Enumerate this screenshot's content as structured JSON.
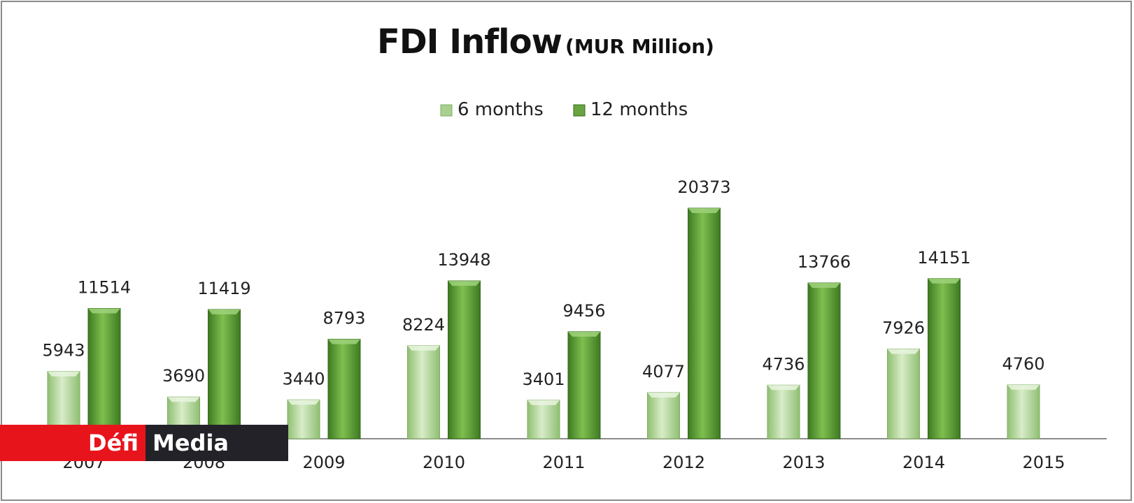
{
  "chart_data": {
    "type": "bar",
    "title": "FDI Inflow",
    "subtitle": "(MUR Million)",
    "categories": [
      "2007",
      "2008",
      "2009",
      "2010",
      "2011",
      "2012",
      "2013",
      "2014",
      "2015"
    ],
    "series": [
      {
        "name": "6 months",
        "color": "#a9d08e",
        "values": [
          5943,
          3690,
          3440,
          8224,
          3401,
          4077,
          4736,
          7926,
          4760
        ]
      },
      {
        "name": "12 months",
        "color": "#6aa342",
        "values": [
          11514,
          11419,
          8793,
          13948,
          9456,
          20373,
          13766,
          14151,
          null
        ]
      }
    ],
    "ylim": [
      0,
      22000
    ],
    "grid": false,
    "legend_position": "top-center",
    "data_labels": true
  },
  "logo": {
    "part1": "Défi",
    "part2": "Media"
  }
}
